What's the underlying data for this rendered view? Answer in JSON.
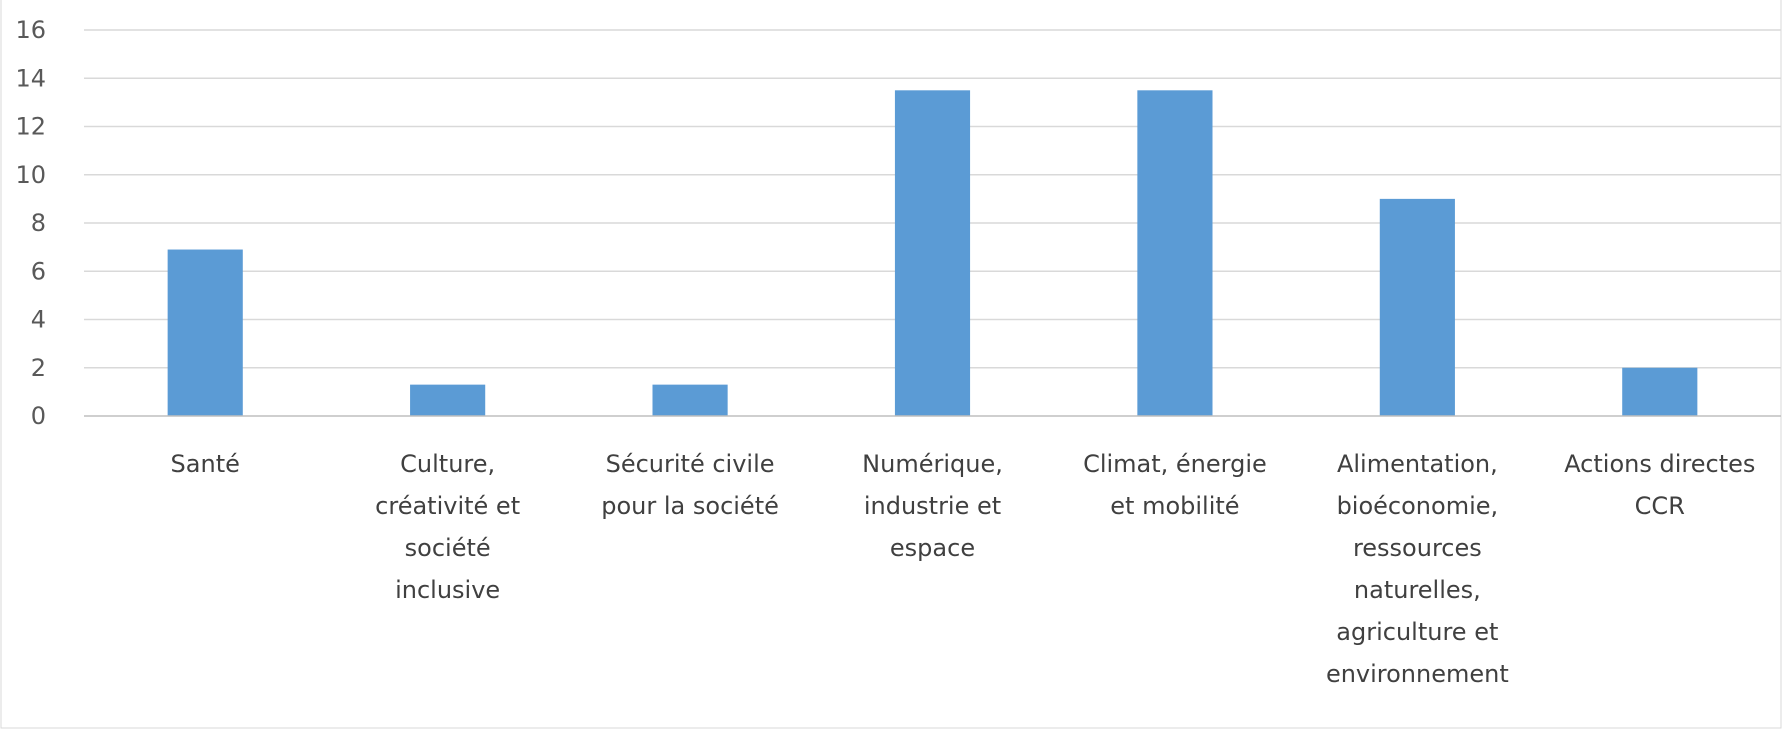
{
  "chart_data": {
    "type": "bar",
    "title": "",
    "xlabel": "",
    "ylabel": "",
    "categories": [
      [
        "Santé"
      ],
      [
        "Culture,",
        "créativité et",
        "société",
        "inclusive"
      ],
      [
        "Sécurité civile",
        "pour la société"
      ],
      [
        "Numérique,",
        "industrie et",
        "espace"
      ],
      [
        "Climat, énergie",
        "et mobilité"
      ],
      [
        "Alimentation,",
        "bioéconomie,",
        "ressources",
        "naturelles,",
        "agriculture et",
        "environnement"
      ],
      [
        "Actions directes",
        "CCR"
      ]
    ],
    "values": [
      6.9,
      1.3,
      1.3,
      13.5,
      13.5,
      9.0,
      2.0
    ],
    "ylim": [
      0,
      16
    ],
    "yticks": [
      "0",
      "2",
      "4",
      "6",
      "8",
      "10",
      "12",
      "14",
      "16"
    ],
    "grid": true,
    "legend": "none",
    "colors": {
      "bar": "#5b9bd5",
      "grid": "#d9d9d9",
      "axis": "#bfbfbf",
      "frame": "#d9d9d9"
    }
  }
}
